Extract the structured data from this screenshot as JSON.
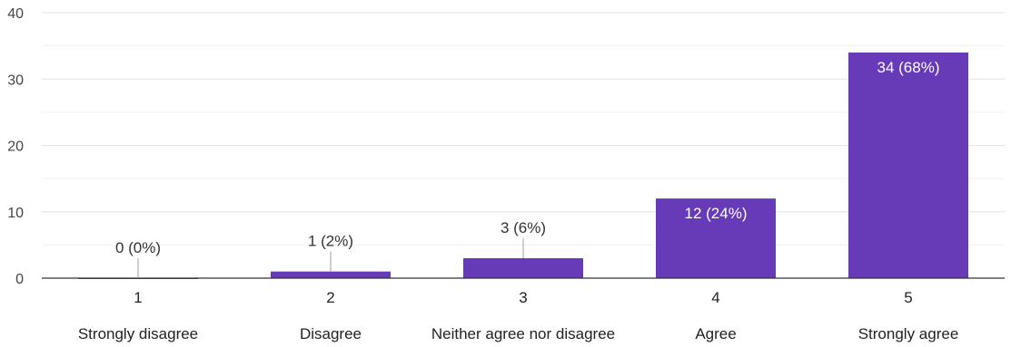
{
  "chart_data": {
    "type": "bar",
    "categories": [
      "1",
      "2",
      "3",
      "4",
      "5"
    ],
    "category_descriptions": [
      "Strongly disagree",
      "Disagree",
      "Neither agree nor disagree",
      "Agree",
      "Strongly agree"
    ],
    "values": [
      0,
      1,
      3,
      12,
      34
    ],
    "data_labels": [
      "0 (0%)",
      "1 (2%)",
      "3 (6%)",
      "12 (24%)",
      "34 (68%)"
    ],
    "ylim": [
      0,
      40
    ],
    "yticks": [
      0,
      10,
      20,
      30,
      40
    ],
    "grid": true,
    "bar_color": "#673ab7",
    "title": "",
    "xlabel": "",
    "ylabel": ""
  }
}
